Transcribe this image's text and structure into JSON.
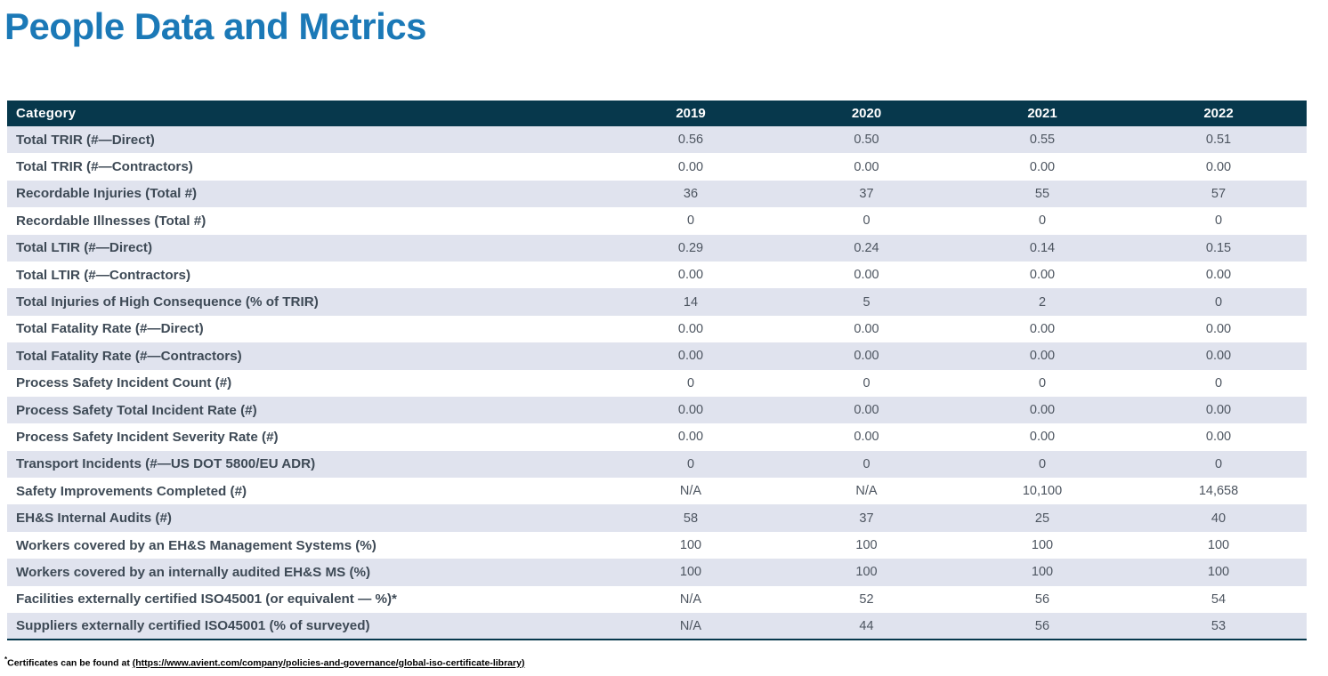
{
  "page": {
    "title": "People Data and Metrics"
  },
  "colors": {
    "title_color": "#1B79B7",
    "header_bg": "#07384C",
    "header_text": "#FFFFFF",
    "row_alt_bg": "#E0E3EE",
    "row_bg": "#FFFFFF",
    "category_text": "#3E4A56",
    "value_text": "#4D5560",
    "table_bottom_border": "#07384C"
  },
  "table": {
    "columns": [
      "Category",
      "2019",
      "2020",
      "2021",
      "2022"
    ],
    "rows": [
      {
        "category": "Total TRIR (#—Direct)",
        "values": [
          "0.56",
          "0.50",
          "0.55",
          "0.51"
        ]
      },
      {
        "category": "Total TRIR (#—Contractors)",
        "values": [
          "0.00",
          "0.00",
          "0.00",
          "0.00"
        ]
      },
      {
        "category": "Recordable Injuries (Total #)",
        "values": [
          "36",
          "37",
          "55",
          "57"
        ]
      },
      {
        "category": "Recordable Illnesses (Total #)",
        "values": [
          "0",
          "0",
          "0",
          "0"
        ]
      },
      {
        "category": "Total LTIR (#—Direct)",
        "values": [
          "0.29",
          "0.24",
          "0.14",
          "0.15"
        ]
      },
      {
        "category": "Total LTIR (#—Contractors)",
        "values": [
          "0.00",
          "0.00",
          "0.00",
          "0.00"
        ]
      },
      {
        "category": "Total Injuries of High Consequence (% of TRIR)",
        "values": [
          "14",
          "5",
          "2",
          "0"
        ]
      },
      {
        "category": "Total Fatality Rate (#—Direct)",
        "values": [
          "0.00",
          "0.00",
          "0.00",
          "0.00"
        ]
      },
      {
        "category": "Total Fatality Rate (#—Contractors)",
        "values": [
          "0.00",
          "0.00",
          "0.00",
          "0.00"
        ]
      },
      {
        "category": "Process Safety Incident Count (#)",
        "values": [
          "0",
          "0",
          "0",
          "0"
        ]
      },
      {
        "category": "Process Safety Total Incident Rate (#)",
        "values": [
          "0.00",
          "0.00",
          "0.00",
          "0.00"
        ]
      },
      {
        "category": "Process Safety Incident Severity Rate (#)",
        "values": [
          "0.00",
          "0.00",
          "0.00",
          "0.00"
        ]
      },
      {
        "category": "Transport Incidents (#—US DOT 5800/EU ADR)",
        "values": [
          "0",
          "0",
          "0",
          "0"
        ]
      },
      {
        "category": "Safety Improvements Completed (#)",
        "values": [
          "N/A",
          "N/A",
          "10,100",
          "14,658"
        ]
      },
      {
        "category": "EH&S Internal Audits (#)",
        "values": [
          "58",
          "37",
          "25",
          "40"
        ]
      },
      {
        "category": "Workers covered by an EH&S Management Systems (%)",
        "values": [
          "100",
          "100",
          "100",
          "100"
        ]
      },
      {
        "category": "Workers covered by an internally audited EH&S MS (%)",
        "values": [
          "100",
          "100",
          "100",
          "100"
        ]
      },
      {
        "category": "Facilities externally certified ISO45001 (or equivalent — %)*",
        "values": [
          "N/A",
          "52",
          "56",
          "54"
        ]
      },
      {
        "category": "Suppliers externally certified ISO45001 (% of surveyed)",
        "values": [
          "N/A",
          "44",
          "56",
          "53"
        ]
      }
    ]
  },
  "footnote": {
    "asterisk": "*",
    "prefix": "Certificates can be found at ",
    "link": "(https://www.avient.com/company/policies-and-governance/global-iso-certificate-library)"
  }
}
